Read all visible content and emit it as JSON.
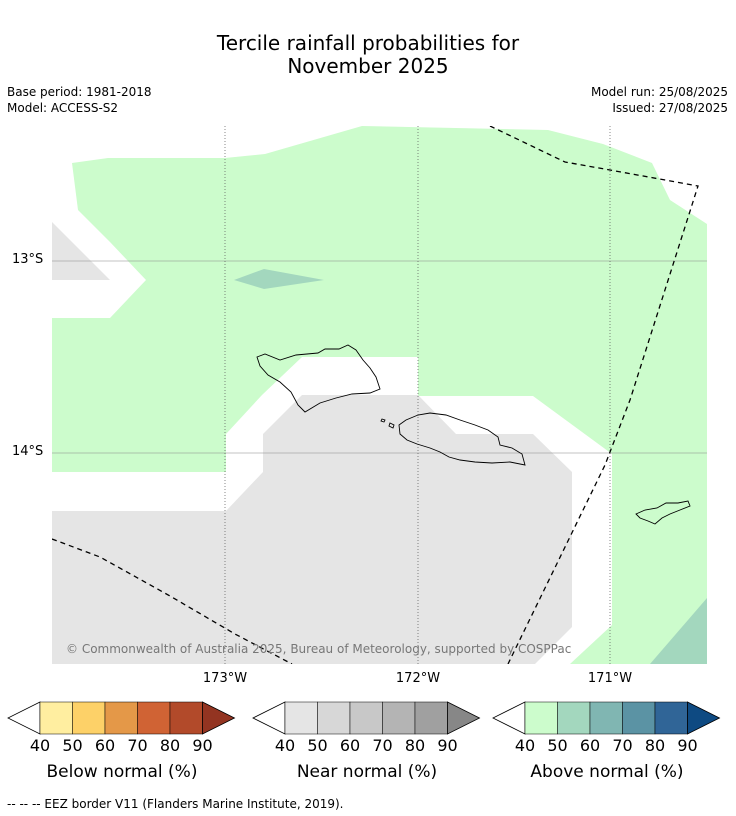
{
  "title": {
    "line1": "Tercile rainfall probabilities for",
    "line2": "November 2025"
  },
  "meta": {
    "base_period": "Base period: 1981-2018",
    "model": "Model: ACCESS-S2",
    "model_run": "Model run: 25/08/2025",
    "issued": "Issued: 27/08/2025"
  },
  "map": {
    "lat_labels": [
      "13°S",
      "14°S"
    ],
    "lon_labels": [
      "173°W",
      "172°W",
      "171°W"
    ],
    "copyright": "© Commonwealth of Australia 2025, Bureau of Meteorology, supported by COSPPac",
    "colors": {
      "above_40_50": "#ccfccc",
      "above_50_60": "#a3d7be",
      "near_40_50": "#e5e5e5"
    }
  },
  "colorbars": [
    {
      "label": "Below normal (%)",
      "ticks": [
        "40",
        "50",
        "60",
        "70",
        "80",
        "90"
      ],
      "colors": [
        "#ffeea0",
        "#fdd168",
        "#e49848",
        "#d06334",
        "#b24a2a",
        "#933421"
      ]
    },
    {
      "label": "Near normal (%)",
      "ticks": [
        "40",
        "50",
        "60",
        "70",
        "80",
        "90"
      ],
      "colors": [
        "#e5e5e5",
        "#d7d7d7",
        "#c8c8c8",
        "#b4b4b4",
        "#a0a0a0",
        "#878787"
      ]
    },
    {
      "label": "Above normal (%)",
      "ticks": [
        "40",
        "50",
        "60",
        "70",
        "80",
        "90"
      ],
      "colors": [
        "#ccfccc",
        "#a3d7be",
        "#80b6b2",
        "#5b93a4",
        "#306597",
        "#0e4a82"
      ]
    }
  ],
  "footer": "--  --  -- EEZ border V11 (Flanders Marine Institute, 2019)."
}
